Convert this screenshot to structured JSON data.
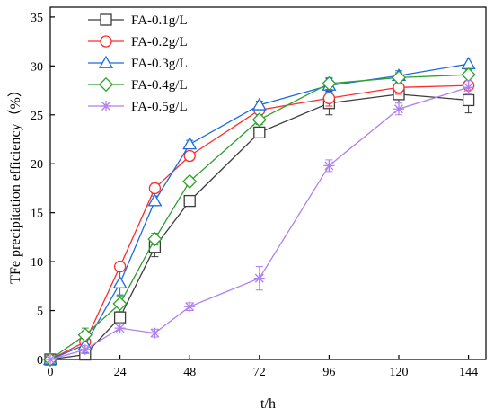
{
  "chart_data": {
    "type": "line",
    "title": "",
    "xlabel": "t/h",
    "ylabel": "TFe precipitation efficiency（%）",
    "xlim": [
      0,
      150
    ],
    "ylim": [
      0,
      36
    ],
    "xticks": [
      0,
      24,
      48,
      72,
      96,
      120,
      144
    ],
    "yticks": [
      0,
      5,
      10,
      15,
      20,
      25,
      30,
      35
    ],
    "grid": false,
    "legend_position": "top-left",
    "series": [
      {
        "name": "FA-0.1g/L",
        "color": "#3c3c3c",
        "marker": "square",
        "x": [
          0,
          12,
          24,
          36,
          48,
          72,
          96,
          120,
          144
        ],
        "y": [
          0,
          0.5,
          4.3,
          11.5,
          16.2,
          23.2,
          26.2,
          27.1,
          26.5
        ],
        "err": [
          0,
          0.5,
          0.6,
          1.0,
          0.5,
          0.5,
          1.2,
          0.8,
          1.3
        ]
      },
      {
        "name": "FA-0.2g/L",
        "color": "#ff2a2a",
        "marker": "circle",
        "x": [
          0,
          12,
          24,
          36,
          48,
          72,
          96,
          120,
          144
        ],
        "y": [
          0,
          1.8,
          9.5,
          17.5,
          20.8,
          25.5,
          26.7,
          27.8,
          28.0
        ],
        "err": [
          0,
          0.6,
          0.4,
          0.5,
          0.4,
          0.5,
          0.8,
          0.7,
          0.8
        ]
      },
      {
        "name": "FA-0.3g/L",
        "color": "#1a6be0",
        "marker": "triangle",
        "x": [
          0,
          12,
          24,
          36,
          48,
          72,
          96,
          120,
          144
        ],
        "y": [
          0,
          1.5,
          7.8,
          16.2,
          22.0,
          26.0,
          28.0,
          29.0,
          30.2
        ],
        "err": [
          0,
          0.8,
          1.2,
          0.5,
          0.4,
          0.4,
          0.7,
          0.5,
          0.6
        ]
      },
      {
        "name": "FA-0.4g/L",
        "color": "#2ca02c",
        "marker": "diamond",
        "x": [
          0,
          12,
          24,
          36,
          48,
          72,
          96,
          120,
          144
        ],
        "y": [
          0,
          2.5,
          5.7,
          12.3,
          18.2,
          24.5,
          28.2,
          28.8,
          29.1
        ],
        "err": [
          0,
          0.7,
          0.8,
          0.6,
          0.4,
          0.5,
          0.6,
          0.5,
          0.6
        ]
      },
      {
        "name": "FA-0.5g/L",
        "color": "#b07ff0",
        "marker": "asterisk",
        "x": [
          0,
          12,
          24,
          36,
          48,
          72,
          96,
          120,
          144
        ],
        "y": [
          0,
          1.0,
          3.2,
          2.7,
          5.4,
          8.3,
          19.8,
          25.6,
          27.8
        ],
        "err": [
          0,
          0.4,
          0.5,
          0.4,
          0.4,
          1.2,
          0.6,
          0.6,
          0.7
        ]
      }
    ]
  }
}
